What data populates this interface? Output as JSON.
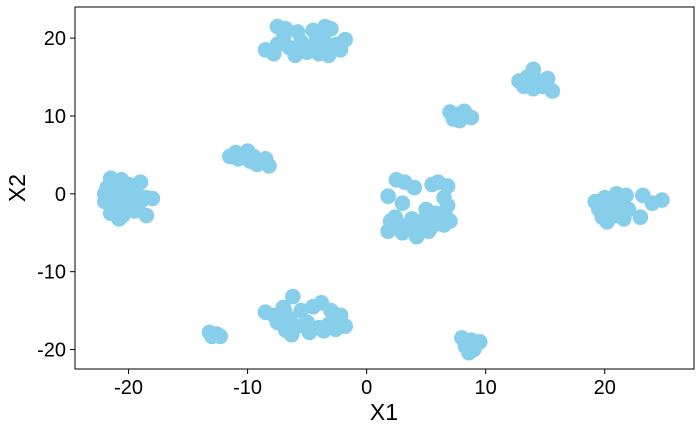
{
  "chart_data": {
    "type": "scatter",
    "title": "",
    "xlabel": "X1",
    "ylabel": "X2",
    "xlim": [
      -24.5,
      27.5
    ],
    "ylim": [
      -22.5,
      24
    ],
    "xticks": [
      -20,
      -10,
      0,
      10,
      20
    ],
    "yticks": [
      -20,
      -10,
      0,
      10,
      20
    ],
    "xtick_labels": [
      "-20",
      "-10",
      "0",
      "10",
      "20"
    ],
    "ytick_labels": [
      "-20",
      "-10",
      "0",
      "10",
      "20"
    ],
    "grid": false,
    "point_color": "#87CEEB",
    "frame_color": "#000000",
    "points": [
      {
        "x": -21.5,
        "y": 2.0
      },
      {
        "x": -21.0,
        "y": 1.0
      },
      {
        "x": -20.5,
        "y": 0.5
      },
      {
        "x": -20.0,
        "y": 1.2
      },
      {
        "x": -19.5,
        "y": 0.8
      },
      {
        "x": -19.0,
        "y": 1.5
      },
      {
        "x": -22.0,
        "y": 0.0
      },
      {
        "x": -21.2,
        "y": -0.5
      },
      {
        "x": -20.2,
        "y": -0.3
      },
      {
        "x": -19.2,
        "y": -0.2
      },
      {
        "x": -18.5,
        "y": -0.5
      },
      {
        "x": -18.0,
        "y": -0.6
      },
      {
        "x": -22.0,
        "y": -1.0
      },
      {
        "x": -21.0,
        "y": -1.5
      },
      {
        "x": -20.0,
        "y": -1.2
      },
      {
        "x": -19.0,
        "y": -1.0
      },
      {
        "x": -21.5,
        "y": -2.5
      },
      {
        "x": -20.5,
        "y": -2.8
      },
      {
        "x": -19.5,
        "y": -2.2
      },
      {
        "x": -18.5,
        "y": -2.8
      },
      {
        "x": -20.8,
        "y": -3.2
      },
      {
        "x": -21.8,
        "y": 0.8
      },
      {
        "x": -20.6,
        "y": 1.8
      },
      {
        "x": -19.8,
        "y": -1.8
      },
      {
        "x": -11.5,
        "y": 4.8
      },
      {
        "x": -11.0,
        "y": 5.3
      },
      {
        "x": -10.5,
        "y": 5.0
      },
      {
        "x": -10.0,
        "y": 5.5
      },
      {
        "x": -10.8,
        "y": 4.5
      },
      {
        "x": -9.8,
        "y": 4.2
      },
      {
        "x": -9.2,
        "y": 3.8
      },
      {
        "x": -8.5,
        "y": 4.5
      },
      {
        "x": -8.2,
        "y": 3.6
      },
      {
        "x": -9.5,
        "y": 4.8
      },
      {
        "x": -7.5,
        "y": 21.5
      },
      {
        "x": -6.8,
        "y": 21.2
      },
      {
        "x": -5.8,
        "y": 20.8
      },
      {
        "x": -4.5,
        "y": 21.0
      },
      {
        "x": -3.5,
        "y": 21.5
      },
      {
        "x": -3.0,
        "y": 21.2
      },
      {
        "x": -8.5,
        "y": 18.5
      },
      {
        "x": -7.5,
        "y": 19.2
      },
      {
        "x": -6.5,
        "y": 18.8
      },
      {
        "x": -5.5,
        "y": 19.5
      },
      {
        "x": -4.5,
        "y": 19.0
      },
      {
        "x": -3.5,
        "y": 19.5
      },
      {
        "x": -2.5,
        "y": 19.2
      },
      {
        "x": -1.8,
        "y": 19.8
      },
      {
        "x": -7.0,
        "y": 20.0
      },
      {
        "x": -6.0,
        "y": 17.8
      },
      {
        "x": -5.0,
        "y": 18.2
      },
      {
        "x": -4.0,
        "y": 18.0
      },
      {
        "x": -3.2,
        "y": 17.8
      },
      {
        "x": -2.2,
        "y": 18.5
      },
      {
        "x": -7.8,
        "y": 18.0
      },
      {
        "x": -4.2,
        "y": 20.3
      },
      {
        "x": 7.0,
        "y": 10.5
      },
      {
        "x": 7.6,
        "y": 10.2
      },
      {
        "x": 8.2,
        "y": 10.6
      },
      {
        "x": 7.3,
        "y": 9.6
      },
      {
        "x": 8.8,
        "y": 9.8
      },
      {
        "x": 7.8,
        "y": 9.4
      },
      {
        "x": 12.8,
        "y": 14.5
      },
      {
        "x": 13.5,
        "y": 15.0
      },
      {
        "x": 14.0,
        "y": 16.0
      },
      {
        "x": 14.5,
        "y": 14.5
      },
      {
        "x": 15.2,
        "y": 14.8
      },
      {
        "x": 13.2,
        "y": 13.8
      },
      {
        "x": 14.0,
        "y": 13.5
      },
      {
        "x": 14.8,
        "y": 13.8
      },
      {
        "x": 15.6,
        "y": 13.2
      },
      {
        "x": 13.8,
        "y": 14.8
      },
      {
        "x": 2.5,
        "y": 1.8
      },
      {
        "x": 3.2,
        "y": 1.5
      },
      {
        "x": 4.0,
        "y": 0.8
      },
      {
        "x": 5.5,
        "y": 1.2
      },
      {
        "x": 6.0,
        "y": 1.5
      },
      {
        "x": 6.8,
        "y": 1.0
      },
      {
        "x": 1.8,
        "y": -0.3
      },
      {
        "x": 3.0,
        "y": -1.2
      },
      {
        "x": 6.5,
        "y": -0.5
      },
      {
        "x": 6.8,
        "y": -1.5
      },
      {
        "x": 5.8,
        "y": -2.5
      },
      {
        "x": 5.0,
        "y": -2.0
      },
      {
        "x": 2.0,
        "y": -3.5
      },
      {
        "x": 2.8,
        "y": -4.0
      },
      {
        "x": 3.6,
        "y": -4.5
      },
      {
        "x": 4.5,
        "y": -3.8
      },
      {
        "x": 5.5,
        "y": -4.2
      },
      {
        "x": 6.5,
        "y": -4.0
      },
      {
        "x": 7.0,
        "y": -3.5
      },
      {
        "x": 1.8,
        "y": -4.8
      },
      {
        "x": 3.0,
        "y": -5.0
      },
      {
        "x": 4.2,
        "y": -5.5
      },
      {
        "x": 5.2,
        "y": -4.8
      },
      {
        "x": 6.0,
        "y": -3.2
      },
      {
        "x": 2.4,
        "y": -3.0
      },
      {
        "x": 4.8,
        "y": -3.4
      },
      {
        "x": 3.8,
        "y": -3.2
      },
      {
        "x": 6.6,
        "y": -2.8
      },
      {
        "x": 19.2,
        "y": -1.0
      },
      {
        "x": 20.0,
        "y": -0.5
      },
      {
        "x": 21.0,
        "y": 0.0
      },
      {
        "x": 21.8,
        "y": -0.2
      },
      {
        "x": 19.5,
        "y": -2.0
      },
      {
        "x": 20.5,
        "y": -1.5
      },
      {
        "x": 21.5,
        "y": -1.2
      },
      {
        "x": 22.0,
        "y": -2.0
      },
      {
        "x": 19.8,
        "y": -3.0
      },
      {
        "x": 20.8,
        "y": -2.8
      },
      {
        "x": 21.6,
        "y": -3.2
      },
      {
        "x": 20.2,
        "y": -3.6
      },
      {
        "x": 23.0,
        "y": -3.0
      },
      {
        "x": 23.2,
        "y": -0.2
      },
      {
        "x": 24.0,
        "y": -1.2
      },
      {
        "x": 24.8,
        "y": -0.8
      },
      {
        "x": -8.5,
        "y": -15.2
      },
      {
        "x": -7.8,
        "y": -15.6
      },
      {
        "x": -7.0,
        "y": -14.6
      },
      {
        "x": -6.2,
        "y": -13.2
      },
      {
        "x": -5.5,
        "y": -15.0
      },
      {
        "x": -4.5,
        "y": -14.5
      },
      {
        "x": -3.8,
        "y": -14.0
      },
      {
        "x": -3.0,
        "y": -15.0
      },
      {
        "x": -2.2,
        "y": -15.6
      },
      {
        "x": -7.5,
        "y": -16.5
      },
      {
        "x": -6.5,
        "y": -16.0
      },
      {
        "x": -5.8,
        "y": -17.0
      },
      {
        "x": -5.0,
        "y": -16.5
      },
      {
        "x": -4.0,
        "y": -17.2
      },
      {
        "x": -3.2,
        "y": -16.8
      },
      {
        "x": -2.6,
        "y": -17.4
      },
      {
        "x": -1.8,
        "y": -17.0
      },
      {
        "x": -6.8,
        "y": -17.5
      },
      {
        "x": -6.3,
        "y": -18.1
      },
      {
        "x": -4.8,
        "y": -17.8
      },
      {
        "x": -3.6,
        "y": -17.6
      },
      {
        "x": -6.9,
        "y": -15.0
      },
      {
        "x": -13.2,
        "y": -17.8
      },
      {
        "x": -12.6,
        "y": -18.0
      },
      {
        "x": -13.0,
        "y": -18.3
      },
      {
        "x": -12.3,
        "y": -18.3
      },
      {
        "x": 8.0,
        "y": -18.5
      },
      {
        "x": 8.8,
        "y": -18.8
      },
      {
        "x": 9.5,
        "y": -19.0
      },
      {
        "x": 8.3,
        "y": -19.6
      },
      {
        "x": 9.0,
        "y": -20.0
      },
      {
        "x": 8.6,
        "y": -20.4
      }
    ]
  }
}
